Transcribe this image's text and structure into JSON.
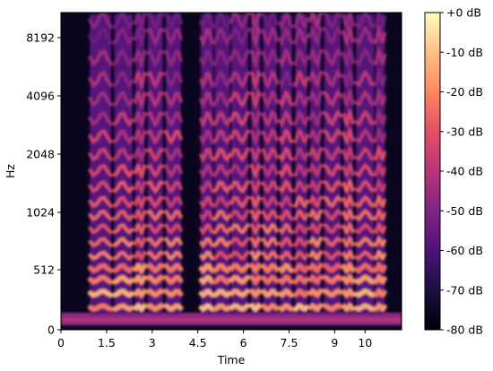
{
  "chart_data": {
    "type": "heatmap",
    "title": "",
    "xlabel": "Time",
    "ylabel": "Hz",
    "x_axis": {
      "range": [
        0,
        11.2
      ],
      "ticks": [
        0,
        1.5,
        3,
        4.5,
        6,
        7.5,
        9,
        10
      ],
      "tick_labels": [
        "0",
        "1.5",
        "3",
        "4.5",
        "6",
        "7.5",
        "9",
        "10"
      ]
    },
    "y_axis": {
      "scale": "log2 (mel)",
      "ticks": [
        0,
        512,
        1024,
        2048,
        4096,
        8192
      ],
      "tick_labels": [
        "0",
        "512",
        "1024",
        "2048",
        "4096",
        "8192"
      ]
    },
    "colorbar": {
      "colormap": "magma",
      "range": [
        -80,
        0
      ],
      "ticks": [
        0,
        -10,
        -20,
        -30,
        -40,
        -50,
        -60,
        -70,
        -80
      ],
      "tick_labels": [
        "+0 dB",
        "-10 dB",
        "-20 dB",
        "-30 dB",
        "-40 dB",
        "-50 dB",
        "-60 dB",
        "-70 dB",
        "-80 dB"
      ]
    },
    "speech_segments": [
      {
        "start": 0.95,
        "end": 1.65
      },
      {
        "start": 1.75,
        "end": 2.35
      },
      {
        "start": 2.45,
        "end": 2.75
      },
      {
        "start": 2.85,
        "end": 3.35
      },
      {
        "start": 3.45,
        "end": 3.95
      },
      {
        "start": 4.6,
        "end": 5.0
      },
      {
        "start": 5.05,
        "end": 5.55
      },
      {
        "start": 5.6,
        "end": 6.15
      },
      {
        "start": 6.25,
        "end": 6.55
      },
      {
        "start": 6.65,
        "end": 7.1
      },
      {
        "start": 7.2,
        "end": 7.6
      },
      {
        "start": 7.7,
        "end": 8.1
      },
      {
        "start": 8.2,
        "end": 8.55
      },
      {
        "start": 8.65,
        "end": 9.2
      },
      {
        "start": 9.3,
        "end": 9.6
      },
      {
        "start": 9.7,
        "end": 10.3
      },
      {
        "start": 10.35,
        "end": 10.65
      }
    ]
  }
}
